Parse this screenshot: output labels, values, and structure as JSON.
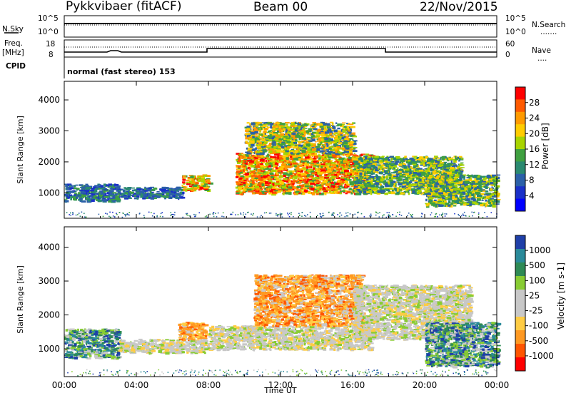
{
  "header": {
    "station": "Pykkvibaer (fitACF)",
    "beam": "Beam 00",
    "date": "22/Nov/2015"
  },
  "sky_panel": {
    "left_label": "N.Sky",
    "left_ticks": [
      "10^5",
      "10^0"
    ],
    "right_ticks": [
      "10^5",
      "10^0"
    ],
    "right_label": "N.Search",
    "legend_line": "......."
  },
  "freq_panel": {
    "left_label_1": "Freq.",
    "left_label_2": "[MHz]",
    "left_ticks": [
      "18",
      "8"
    ],
    "right_ticks": [
      "60",
      "0"
    ],
    "right_label": "Nave",
    "legend_line": "...."
  },
  "cpid": {
    "label": "CPID",
    "text": "normal (fast stereo) 153"
  },
  "power_panel": {
    "ylabel": "Slant Range [km]",
    "y_ticks": [
      "4000",
      "3000",
      "2000",
      "1000"
    ],
    "colorbar": {
      "title": "Power [dB]",
      "labels": [
        "28",
        "24",
        "20",
        "16",
        "12",
        "8",
        "4"
      ],
      "colors": [
        "#ff0000",
        "#ff5a00",
        "#ff9a00",
        "#ffcc00",
        "#a8d400",
        "#3fa040",
        "#2a8a70",
        "#2b60a8",
        "#1a30c8",
        "#0000ff"
      ]
    }
  },
  "velocity_panel": {
    "ylabel": "Slant Range [km]",
    "y_ticks": [
      "4000",
      "3000",
      "2000",
      "1000"
    ],
    "colorbar": {
      "title": "Velocity [m s-1]",
      "labels": [
        "1000",
        "500",
        "100",
        "25",
        "-25",
        "-100",
        "-500",
        "-1000"
      ],
      "colors": [
        "#1f3fa8",
        "#2a8a9a",
        "#2e8a55",
        "#88cc33",
        "#c8c8c8",
        "#c8c8c8",
        "#ffcc44",
        "#ff9922",
        "#ff5500",
        "#ff0000"
      ]
    }
  },
  "x_axis": {
    "ticks": [
      "00:00",
      "04:00",
      "08:00",
      "12:00",
      "16:00",
      "20:00",
      "00:00"
    ],
    "label": "Time UT"
  },
  "chart_data": [
    {
      "type": "heatmap",
      "title": "Power [dB]",
      "xlabel": "Time UT",
      "ylabel": "Slant Range [km]",
      "xlim": [
        0,
        24
      ],
      "ylim": [
        180,
        4600
      ],
      "colorbar_range": [
        0,
        30
      ],
      "bands": [
        {
          "x0": 0.0,
          "x1": 3.0,
          "y0": 750,
          "y1": 1300,
          "level": "low"
        },
        {
          "x0": 3.0,
          "x1": 6.5,
          "y0": 850,
          "y1": 1200,
          "level": "low"
        },
        {
          "x0": 6.5,
          "x1": 8.0,
          "y0": 1100,
          "y1": 1600,
          "level": "high"
        },
        {
          "x0": 9.5,
          "x1": 17.0,
          "y0": 1000,
          "y1": 2300,
          "level": "high"
        },
        {
          "x0": 10.0,
          "x1": 16.0,
          "y0": 2300,
          "y1": 3300,
          "level": "mixed"
        },
        {
          "x0": 16.0,
          "x1": 22.0,
          "y0": 1000,
          "y1": 2200,
          "level": "mid"
        },
        {
          "x0": 20.0,
          "x1": 24.0,
          "y0": 600,
          "y1": 1600,
          "level": "mid"
        }
      ]
    },
    {
      "type": "heatmap",
      "title": "Velocity [m s-1]",
      "xlabel": "Time UT",
      "ylabel": "Slant Range [km]",
      "xlim": [
        0,
        24
      ],
      "ylim": [
        180,
        4600
      ],
      "colorbar_range": [
        -1000,
        1000
      ],
      "bands": [
        {
          "x0": 0.0,
          "x1": 3.0,
          "y0": 750,
          "y1": 1600,
          "level": "positive"
        },
        {
          "x0": 3.0,
          "x1": 8.0,
          "y0": 900,
          "y1": 1300,
          "level": "near-zero"
        },
        {
          "x0": 6.3,
          "x1": 7.8,
          "y0": 1300,
          "y1": 1800,
          "level": "negative"
        },
        {
          "x0": 8.0,
          "x1": 17.0,
          "y0": 1000,
          "y1": 1700,
          "level": "near-zero"
        },
        {
          "x0": 10.5,
          "x1": 16.5,
          "y0": 1700,
          "y1": 3200,
          "level": "negative"
        },
        {
          "x0": 16.0,
          "x1": 22.5,
          "y0": 1300,
          "y1": 2900,
          "level": "near-zero"
        },
        {
          "x0": 20.0,
          "x1": 24.0,
          "y0": 500,
          "y1": 1800,
          "level": "positive"
        }
      ]
    }
  ]
}
